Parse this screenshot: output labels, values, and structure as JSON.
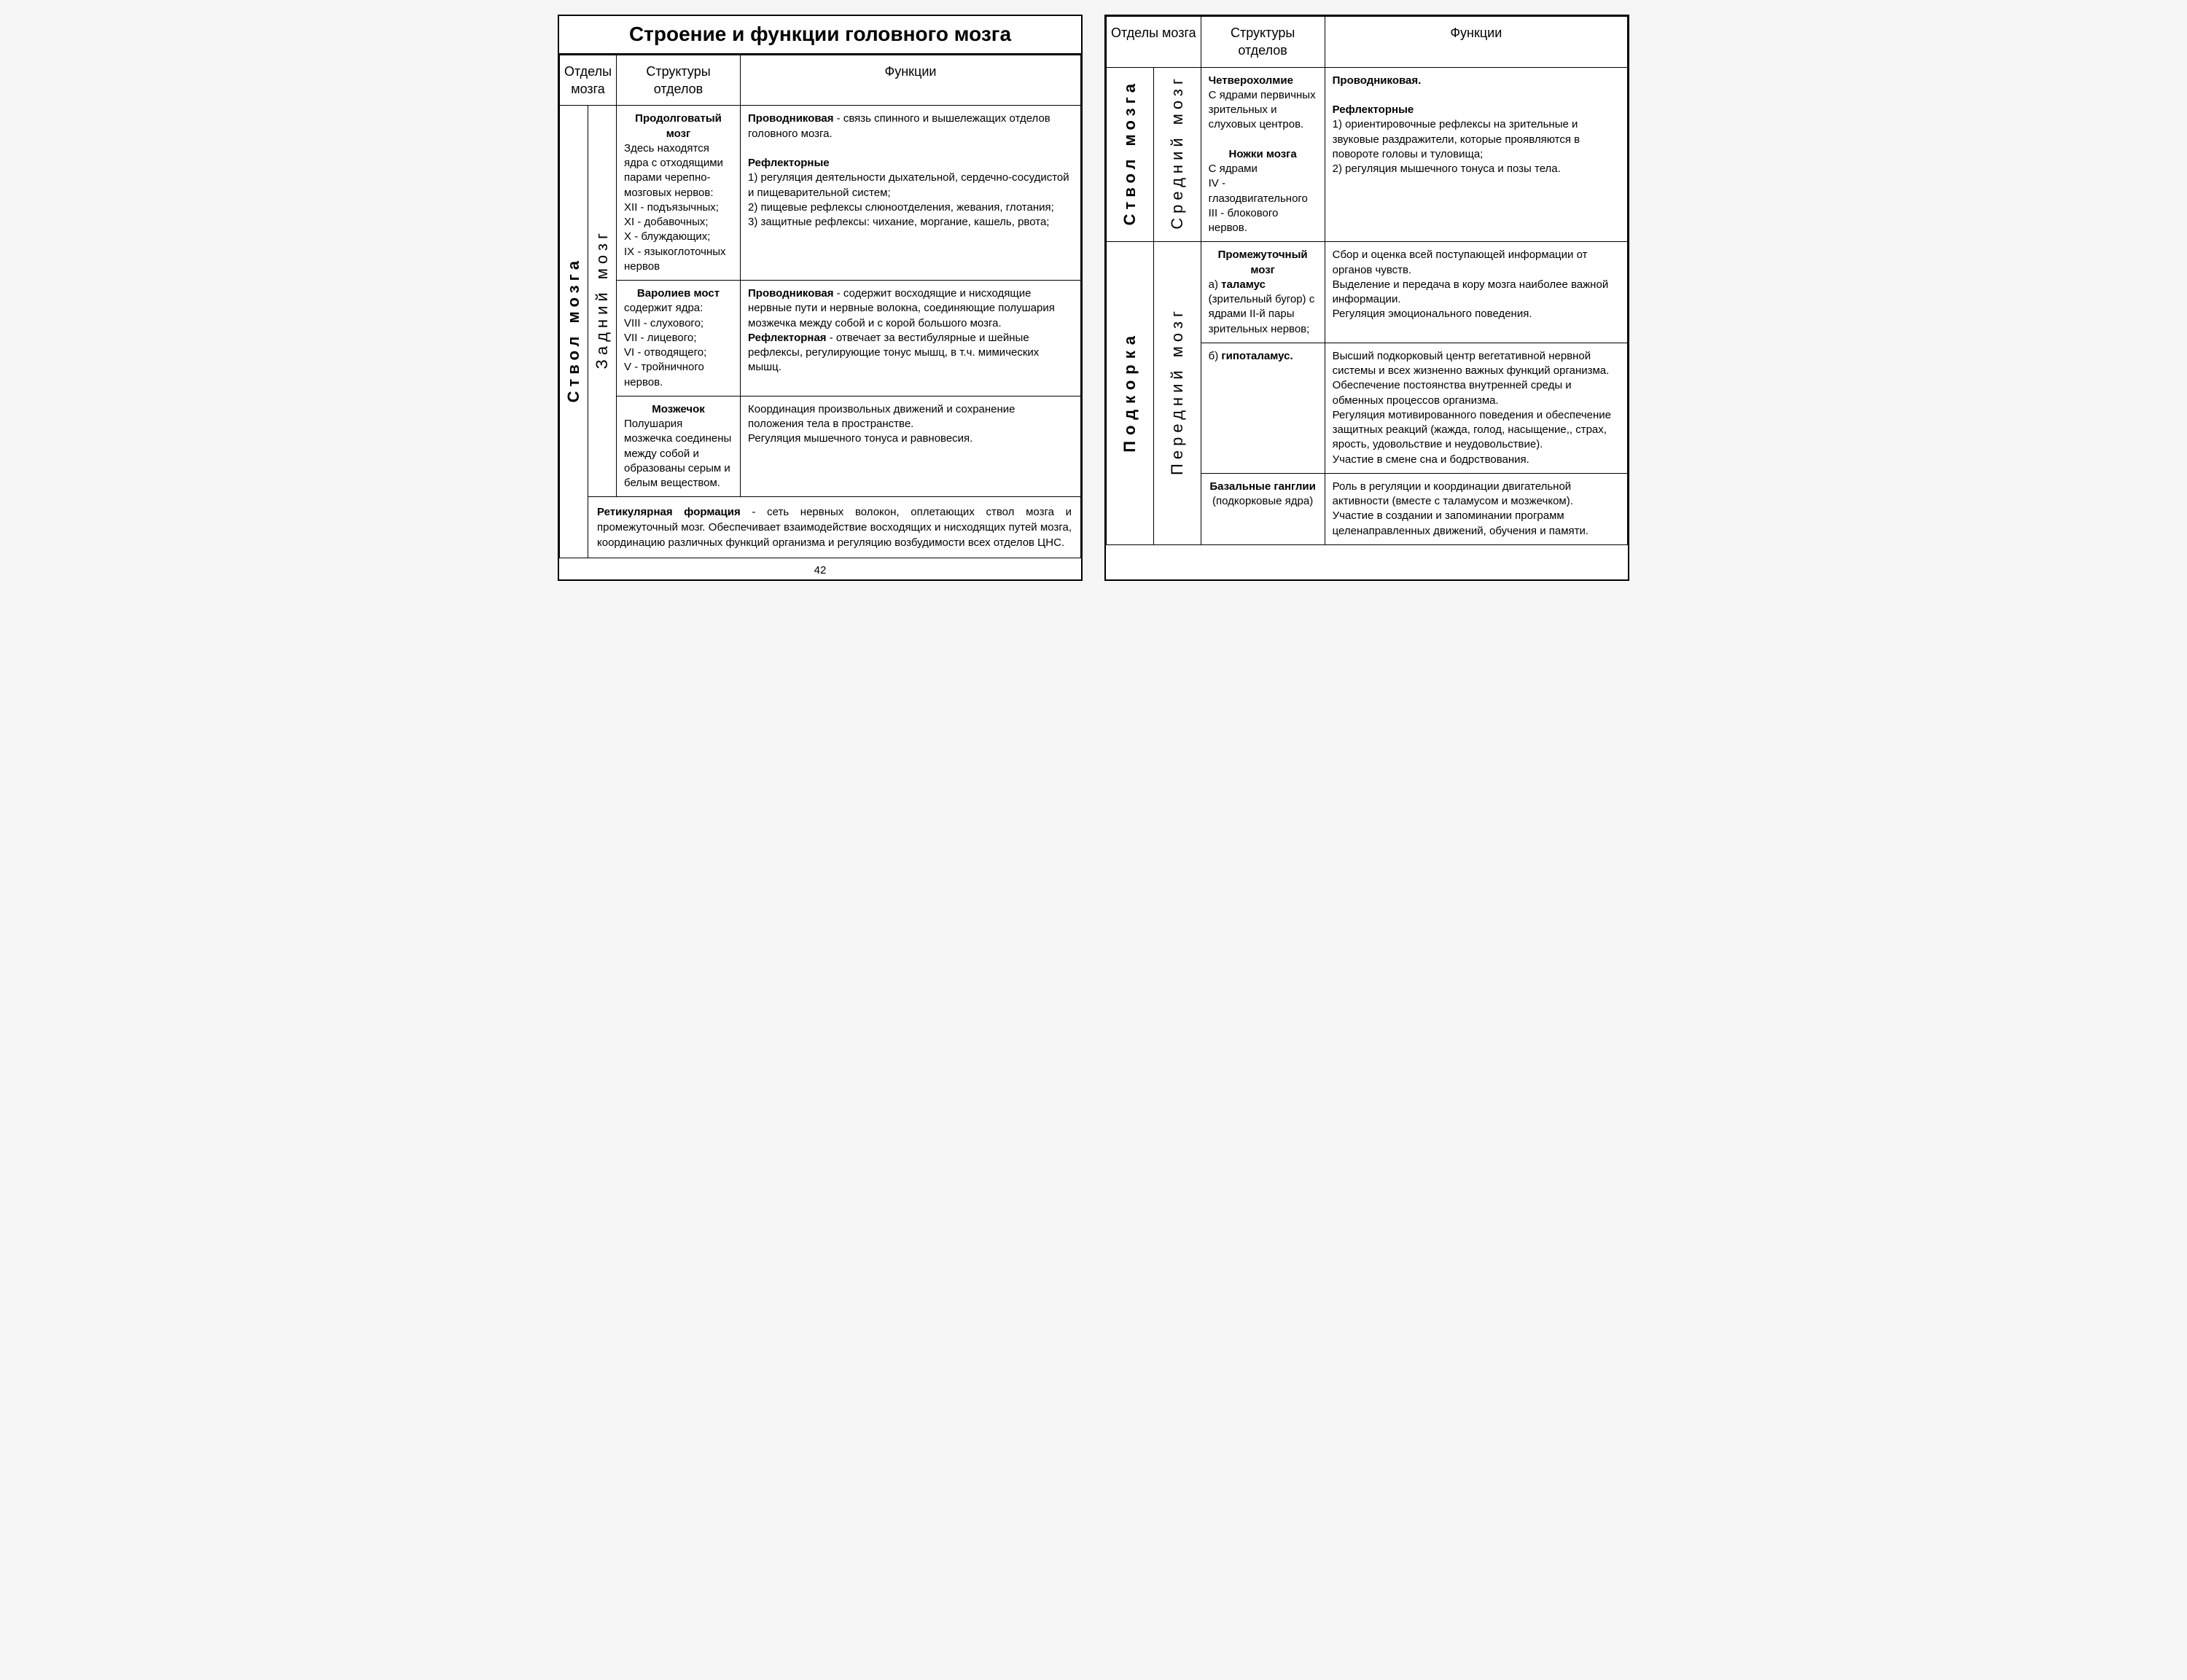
{
  "title": "Строение и функции головного мозга",
  "headers": {
    "col1": "Отделы мозга",
    "col2": "Структуры отделов",
    "col3": "Функции"
  },
  "left": {
    "vouter": "Ствол мозга",
    "vinner": "Задний мозг",
    "rows": [
      {
        "struct_title": "Продолговатый мозг",
        "struct_body": "Здесь находятся ядра с отходящими парами черепно-мозговых нервов:\nXII - подъязычных;\nXI - добавочных;\nX - блуждающих;\nIX - языкоглоточных нервов",
        "func_lead1": "Проводниковая",
        "func_tail1": " - связь спинного и вышележащих отделов головного мозга.",
        "func_lead2": "Рефлекторные",
        "func_list": "1) регуляция деятельности дыхательной, сердечно-сосудистой и пищеварительной систем;\n2) пищевые рефлексы слюноотделения, жевания, глотания;\n3) защитные рефлексы: чихание, моргание, кашель, рвота;"
      },
      {
        "struct_title": "Варолиев мост",
        "struct_body": "содержит ядра:\nVIII - слухового;\nVII - лицевого;\nVI - отводящего;\nV - тройничного нервов.",
        "func_lead1": "Проводниковая",
        "func_tail1": " - содержит восходящие и нисходящие нервные пути и нервные волокна, соединяющие полушария мозжечка между собой и с корой большого мозга.",
        "func_lead2": "Рефлекторная",
        "func_tail2": " - отвечает за вестибулярные и шейные рефлексы, регулирующие тонус мышц, в т.ч. мимических мышц."
      },
      {
        "struct_title": "Мозжечок",
        "struct_body": "Полушария мозжечка соединены между собой и образованы серым и белым веществом.",
        "func_plain": "Координация произвольных движений и сохранение положения тела в пространстве.\nРегуляция мышечного тонуса и равновесия."
      }
    ],
    "footnote_lead": "Ретикулярная формация",
    "footnote_tail": " - сеть нервных волокон, оплетающих ствол мозга и промежуточный мозг. Обеспечивает взаимодействие восходящих и нисходящих путей мозга, координацию различных функций организма и регуляцию возбудимости всех отделов ЦНС.",
    "pagenum": "42"
  },
  "right": {
    "block1": {
      "vouter": "Ствол мозга",
      "vinner": "Средний мозг",
      "struct_t1": "Четверохолмие",
      "struct_b1": "С ядрами первичных зрительных и слуховых центров.",
      "struct_t2": "Ножки мозга",
      "struct_b2": "С ядрами\nIV - глазодвигательного\nIII - блокового нервов.",
      "func_lead1": "Проводниковая.",
      "func_lead2": "Рефлекторные",
      "func_list": "1) ориентировочные рефлексы на зрительные и звуковые раздражители, которые проявляются в повороте головы и туловища;\n2) регуляция мышечного тонуса и позы тела."
    },
    "block2": {
      "vouter": "Подкорка",
      "vinner": "Передний мозг",
      "r1": {
        "struct_t": "Промежуточный мозг",
        "struct_a_lead": "а) ",
        "struct_a_bold": "таламус",
        "struct_a_tail": " (зрительный бугор) с ядрами II-й пары зрительных нервов;",
        "func": "Сбор и оценка всей поступающей информации от органов чувств.\nВыделение и передача в кору мозга наиболее важной информации.\nРегуляция эмоционального поведения."
      },
      "r2": {
        "struct_b_lead": "б) ",
        "struct_b_bold": "гипоталамус.",
        "func": "Высший подкорковый центр вегетативной нервной системы и всех жизненно важных функций организма.\nОбеспечение постоянства внутренней среды и обменных процессов организма.\nРегуляция мотивированного поведения и обеспечение защитных реакций (жажда, голод, насыщение,, страх, ярость, удовольствие и неудовольствие).\nУчастие в смене сна и бодрствования."
      },
      "r3": {
        "struct_t": "Базальные ганглии",
        "struct_sub": "(подкорковые ядра)",
        "func": "Роль в регуляции и координации двигательной активности (вместе с таламусом и мозжечком).\nУчастие в создании и запоминании программ целенаправленных движений, обучения и памяти."
      }
    }
  }
}
